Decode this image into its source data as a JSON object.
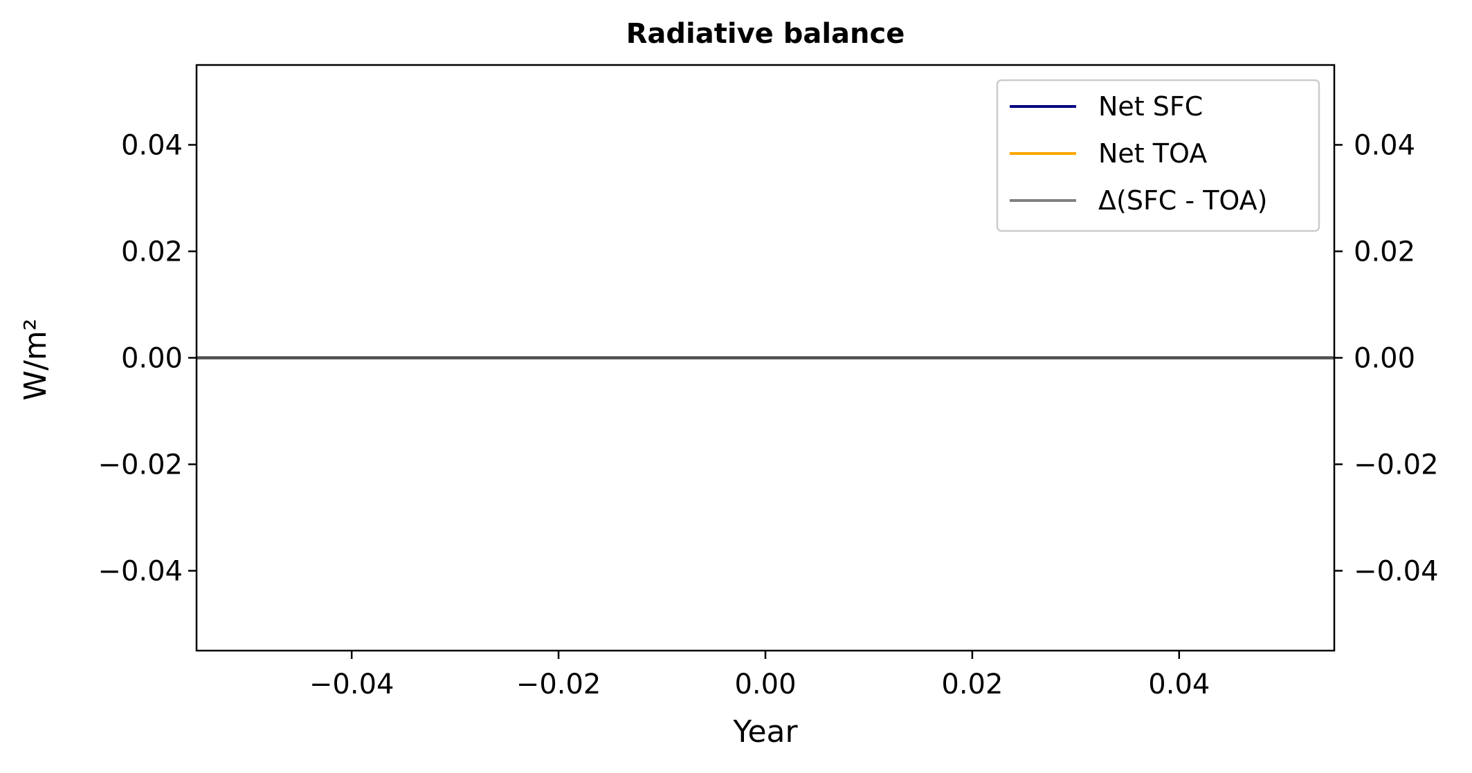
{
  "chart_data": {
    "type": "line",
    "title": "Radiative balance",
    "xlabel": "Year",
    "ylabel": "W/m²",
    "xlim": [
      -0.055,
      0.055
    ],
    "ylim": [
      -0.055,
      0.055
    ],
    "x_ticks": [
      -0.04,
      -0.02,
      0.0,
      0.02,
      0.04
    ],
    "x_tick_labels": [
      "−0.04",
      "−0.02",
      "0.00",
      "0.02",
      "0.04"
    ],
    "y_ticks": [
      0.04,
      0.02,
      0.0,
      -0.02,
      -0.04
    ],
    "y_tick_labels": [
      "0.04",
      "0.02",
      "0.00",
      "−0.02",
      "−0.04"
    ],
    "right_y_tick_labels": [
      "0.04",
      "0.02",
      "0.00",
      "−0.02",
      "−0.04"
    ],
    "grid": false,
    "legend_position": "top-right",
    "series": [
      {
        "name": "Net SFC",
        "color": "#000080",
        "x": [],
        "y": []
      },
      {
        "name": "Net TOA",
        "color": "#FFA500",
        "x": [],
        "y": []
      },
      {
        "name": "Δ(SFC - TOA)",
        "color": "#808080",
        "x": [],
        "y": []
      }
    ],
    "reference_lines": [
      {
        "orientation": "horizontal",
        "y": 0,
        "color": "#505050"
      }
    ]
  }
}
